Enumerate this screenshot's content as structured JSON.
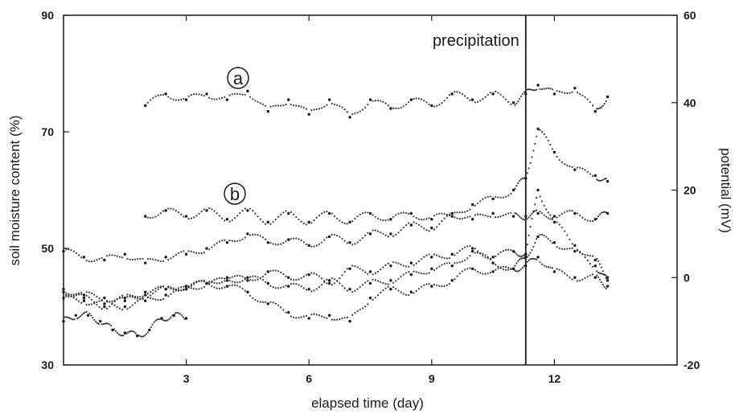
{
  "chart_data": {
    "type": "scatter",
    "xlabel": "elapsed time (day)",
    "ylabel_left": "soil moisture content (%)",
    "ylabel_right": "potential (mV)",
    "xlim": [
      0,
      15
    ],
    "ylim_left": [
      30,
      90
    ],
    "ylim_right": [
      -20,
      60
    ],
    "x_ticks": [
      3,
      6,
      9,
      12
    ],
    "y_ticks_left": [
      30,
      50,
      70,
      90
    ],
    "y_ticks_right": [
      -20,
      0,
      20,
      40,
      60
    ],
    "grid": false,
    "legend": "none",
    "annotations": [
      {
        "text": "precipitation",
        "type": "vertical-line",
        "x": 11.3
      },
      {
        "text": "a",
        "type": "circled-label",
        "series": "a"
      },
      {
        "text": "b",
        "type": "circled-label",
        "series": "b"
      }
    ],
    "series": [
      {
        "name": "a",
        "axis": "left",
        "x": [
          2.0,
          2.5,
          3.0,
          3.5,
          4.0,
          4.5,
          5.0,
          5.5,
          6.0,
          6.5,
          7.0,
          7.5,
          8.0,
          8.5,
          9.0,
          9.5,
          10.0,
          10.5,
          11.0,
          11.3,
          11.6,
          12.0,
          12.5,
          13.0,
          13.3
        ],
        "y": [
          74.5,
          76.5,
          75.5,
          76.5,
          75.5,
          77.0,
          73.5,
          75.5,
          73.0,
          75.5,
          72.5,
          75.5,
          74.0,
          75.5,
          74.5,
          76.5,
          75.5,
          76.5,
          75.0,
          76.5,
          78.0,
          76.5,
          77.5,
          73.5,
          76.0
        ]
      },
      {
        "name": "b",
        "axis": "left",
        "x": [
          2.0,
          2.5,
          3.0,
          3.5,
          4.0,
          4.5,
          5.0,
          5.5,
          6.0,
          6.5,
          7.0,
          7.5,
          8.0,
          8.5,
          9.0,
          9.5,
          10.0,
          10.5,
          11.0,
          11.3,
          11.6,
          12.0,
          12.5,
          13.0,
          13.3
        ],
        "y": [
          55.5,
          56.5,
          55.5,
          56.5,
          55.0,
          56.5,
          54.5,
          56.0,
          54.5,
          56.0,
          54.5,
          56.0,
          55.0,
          56.0,
          55.0,
          56.0,
          55.0,
          56.0,
          55.5,
          55.5,
          56.0,
          55.5,
          56.0,
          55.0,
          56.0
        ]
      },
      {
        "name": "",
        "axis": "left",
        "x": [
          0.0,
          0.5,
          1.0,
          1.5,
          2.0,
          2.5,
          3.0,
          3.5,
          4.0,
          4.5,
          5.0,
          5.5,
          6.0,
          6.5,
          7.0,
          7.5,
          8.0,
          8.5,
          9.0,
          9.5,
          10.0,
          10.5,
          11.0,
          11.3,
          11.6,
          12.0,
          12.5,
          13.0,
          13.3
        ],
        "y": [
          49.5,
          48.5,
          48.0,
          49.0,
          47.5,
          48.5,
          49.0,
          50.0,
          51.0,
          52.5,
          51.0,
          51.5,
          50.5,
          52.0,
          51.0,
          52.5,
          52.5,
          54.0,
          53.5,
          55.5,
          57.5,
          58.5,
          60.0,
          62.0,
          70.5,
          66.5,
          63.5,
          62.5,
          61.5
        ]
      },
      {
        "name": "",
        "axis": "left",
        "x": [
          0.0,
          0.5,
          1.0,
          1.5,
          2.0,
          2.5,
          3.0,
          3.5,
          4.0,
          4.5,
          5.0,
          5.5,
          6.0,
          6.5,
          7.0,
          7.5,
          8.0,
          8.5,
          9.0,
          9.5,
          10.0,
          10.5,
          11.0,
          11.3,
          11.6,
          12.0,
          12.5,
          13.0,
          13.3
        ],
        "y": [
          43.0,
          42.0,
          41.5,
          41.0,
          42.0,
          43.0,
          43.5,
          44.0,
          45.0,
          44.5,
          46.0,
          45.0,
          45.5,
          44.0,
          46.5,
          46.0,
          47.0,
          47.5,
          48.5,
          49.0,
          50.0,
          48.5,
          49.5,
          49.0,
          60.0,
          54.5,
          50.5,
          48.0,
          45.0
        ]
      },
      {
        "name": "",
        "axis": "left",
        "x": [
          0.0,
          0.5,
          1.0,
          1.5,
          2.0,
          2.5,
          3.0,
          3.5,
          4.0,
          4.5,
          5.0,
          5.5,
          6.0,
          6.5,
          7.0,
          7.5,
          8.0,
          8.5,
          9.0,
          9.5,
          10.0,
          10.5,
          11.0,
          11.3,
          11.6,
          12.0,
          12.5,
          13.0,
          13.3
        ],
        "y": [
          41.5,
          41.0,
          40.5,
          40.0,
          41.0,
          42.0,
          43.0,
          44.0,
          44.5,
          45.0,
          44.0,
          43.5,
          43.0,
          44.5,
          43.0,
          44.0,
          44.5,
          45.5,
          46.5,
          47.0,
          49.5,
          47.5,
          46.5,
          48.5,
          52.0,
          51.0,
          49.5,
          47.0,
          44.5
        ]
      },
      {
        "name": "",
        "axis": "left",
        "x": [
          0.0,
          0.5,
          1.0,
          1.5,
          2.0,
          2.5,
          3.0,
          3.5,
          4.0,
          4.5,
          5.0,
          5.5,
          6.0,
          6.5,
          7.0,
          7.5,
          8.0,
          8.5,
          9.0,
          9.5,
          10.0,
          10.5,
          11.0,
          11.3,
          11.6,
          12.0,
          12.5,
          13.0,
          13.3
        ],
        "y": [
          42.5,
          41.5,
          40.0,
          41.5,
          42.5,
          43.0,
          43.5,
          44.0,
          43.5,
          42.5,
          40.5,
          39.0,
          38.0,
          38.5,
          37.5,
          41.5,
          43.0,
          42.5,
          43.5,
          44.5,
          46.5,
          46.0,
          46.5,
          47.0,
          48.5,
          46.0,
          45.0,
          45.0,
          43.5
        ]
      },
      {
        "name": "",
        "axis": "left",
        "x": [
          0.0,
          0.3,
          0.6,
          0.9,
          1.2,
          1.5,
          1.8,
          2.1,
          2.4,
          2.7,
          3.0
        ],
        "y": [
          37.5,
          38.5,
          38.5,
          37.5,
          36.0,
          35.5,
          35.0,
          36.0,
          38.0,
          38.5,
          38.0
        ]
      }
    ],
    "colors": {
      "ink": "#1a1a1a",
      "background": "#ffffff"
    }
  }
}
